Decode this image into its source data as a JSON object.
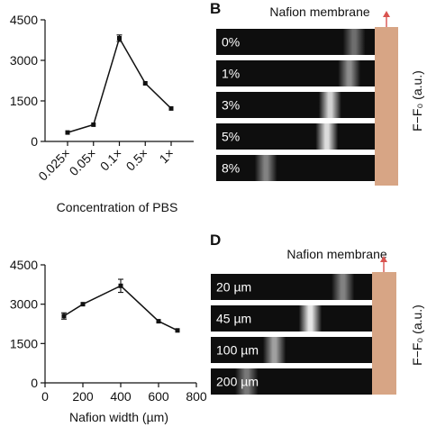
{
  "chart_data": [
    {
      "type": "line",
      "categories": [
        "0.025×",
        "0.05×",
        "0.1×",
        "0.5×",
        "1×"
      ],
      "values": [
        330,
        620,
        3820,
        2150,
        1220
      ],
      "error": [
        0,
        0,
        120,
        0,
        0
      ],
      "xlabel": "Concentration of PBS",
      "ylabel": "",
      "ylim": [
        0,
        4500
      ],
      "yticks": [
        "0",
        "1500",
        "3000",
        "4500"
      ],
      "grid": false
    },
    {
      "type": "line",
      "x": [
        100,
        200,
        400,
        600,
        700
      ],
      "values": [
        2550,
        3000,
        3700,
        2350,
        2000
      ],
      "error": [
        120,
        0,
        250,
        0,
        0
      ],
      "xlabel": "Nafion width (µm)",
      "ylabel": "",
      "xlim": [
        0,
        800
      ],
      "xticks": [
        "0",
        "200",
        "400",
        "600",
        "800"
      ],
      "ylim": [
        0,
        4500
      ],
      "yticks": [
        "0",
        "1500",
        "3000",
        "4500"
      ],
      "grid": false
    }
  ],
  "panels": [
    {
      "letter": "B",
      "membrane_label": "Nafion membrane",
      "ylabel": "F−F₀ (a.u.)",
      "strips": [
        {
          "label": "0%",
          "band": 0.87,
          "intensity": 0.35
        },
        {
          "label": "1%",
          "band": 0.84,
          "intensity": 0.5
        },
        {
          "label": "3%",
          "band": 0.72,
          "intensity": 0.85
        },
        {
          "label": "5%",
          "band": 0.7,
          "intensity": 0.9
        },
        {
          "label": "8%",
          "band": 0.32,
          "intensity": 0.45
        }
      ]
    },
    {
      "letter": "D",
      "membrane_label": "Nafion membrane",
      "ylabel": "F−F₀ (a.u.)",
      "strips": [
        {
          "label": "20 µm",
          "band": 0.82,
          "intensity": 0.45
        },
        {
          "label": "45 µm",
          "band": 0.62,
          "intensity": 0.95
        },
        {
          "label": "100 µm",
          "band": 0.4,
          "intensity": 0.6
        },
        {
          "label": "200 µm",
          "band": 0.23,
          "intensity": 0.4
        }
      ]
    }
  ],
  "colors": {
    "line": "#111111",
    "strip_bg": "#0e0e0e",
    "membrane": "#d7a585",
    "arrow": "#d9534f"
  }
}
